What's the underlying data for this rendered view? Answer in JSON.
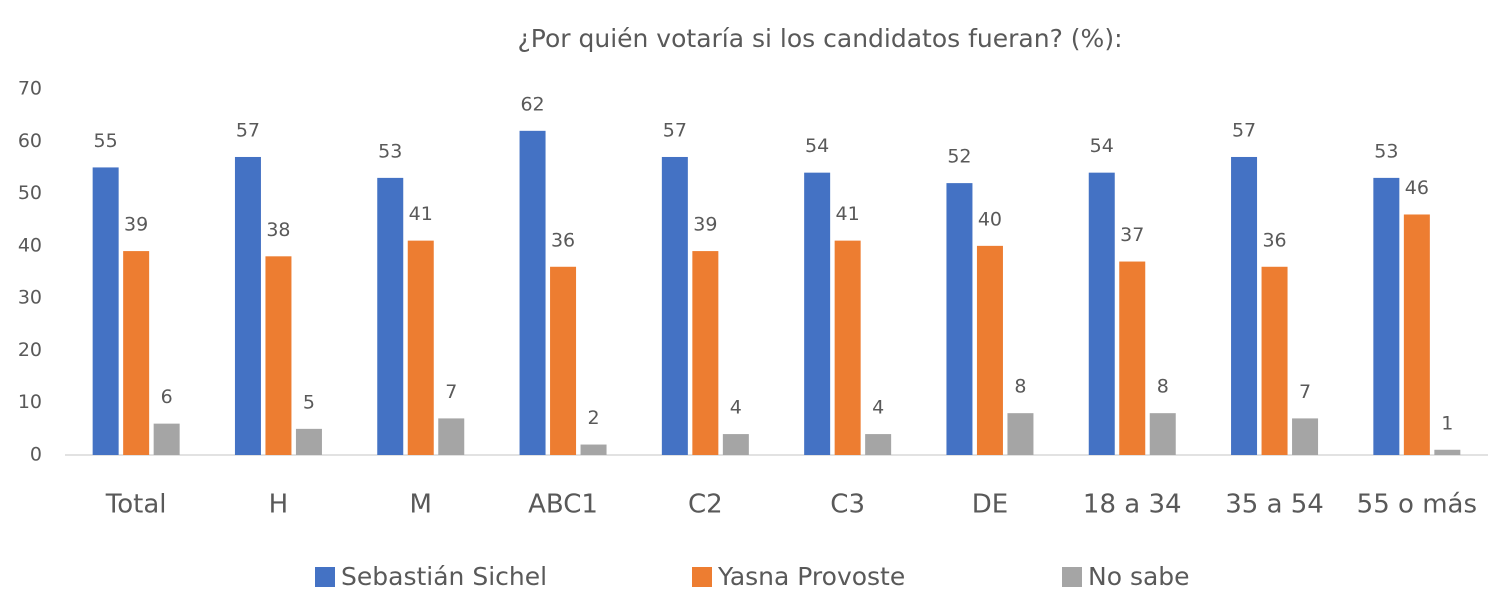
{
  "chart_data": {
    "type": "bar",
    "title": "¿Por quién votaría si los candidatos fueran? (%):",
    "categories": [
      "Total",
      "H",
      "M",
      "ABC1",
      "C2",
      "C3",
      "DE",
      "18 a 34",
      "35 a 54",
      "55 o más"
    ],
    "series": [
      {
        "name": "Sebastián Sichel",
        "color": "#4472c4",
        "values": [
          55,
          57,
          53,
          62,
          57,
          54,
          52,
          54,
          57,
          53
        ]
      },
      {
        "name": "Yasna Provoste",
        "color": "#ed7d31",
        "values": [
          39,
          38,
          41,
          36,
          39,
          41,
          40,
          37,
          36,
          46
        ]
      },
      {
        "name": "No sabe",
        "color": "#a5a5a5",
        "values": [
          6,
          5,
          7,
          2,
          4,
          4,
          8,
          8,
          7,
          1
        ]
      }
    ],
    "ylim": [
      0,
      70
    ],
    "yticks": [
      0,
      10,
      20,
      30,
      40,
      50,
      60,
      70
    ],
    "legend": "bottom"
  }
}
